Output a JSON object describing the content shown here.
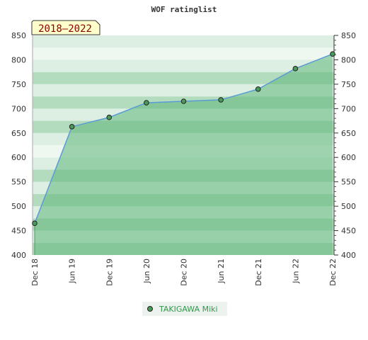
{
  "page": {
    "title": "WOF ratinglist",
    "period_badge": "2018–2022"
  },
  "colors": {
    "band_dark": "#b3dcbf",
    "band_light": "#dcefe2",
    "band_white": "#eef7f0",
    "area_fill": "#5fb77a",
    "line": "#5b9bd5",
    "marker": "#4a9a5a",
    "badge_bg": "#ffffcc"
  },
  "legend": {
    "marker_icon": "circle-marker"
  },
  "chart_data": {
    "type": "area",
    "title": "WOF ratinglist",
    "x": [
      "Dec 18",
      "Jun 19",
      "Dec 19",
      "Jun 20",
      "Dec 20",
      "Jun 21",
      "Dec 21",
      "Jun 22",
      "Dec 22"
    ],
    "series": [
      {
        "name": "TAKIGAWA Miki",
        "values": [
          465,
          663,
          682,
          712,
          715,
          718,
          740,
          782,
          812
        ]
      }
    ],
    "ylim": [
      400,
      850
    ],
    "yticks": [
      400,
      450,
      500,
      550,
      600,
      650,
      700,
      750,
      800,
      850
    ],
    "y_axis_both_sides": true,
    "legend_position": "bottom-center",
    "grid": "horizontal-bands"
  }
}
